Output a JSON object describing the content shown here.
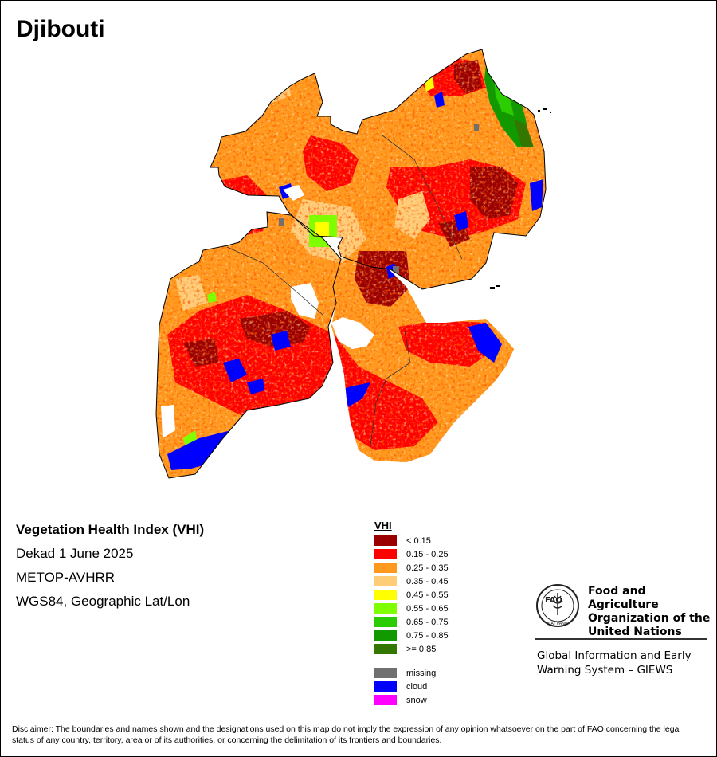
{
  "title": "Djibouti",
  "info": {
    "index_name": "Vegetation Health Index (VHI)",
    "period": "Dekad 1 June 2025",
    "sensor": "METOP-AVHRR",
    "projection": "WGS84, Geographic Lat/Lon"
  },
  "legend": {
    "title": "VHI",
    "classes": [
      {
        "label": "< 0.15",
        "color": "#9b0000"
      },
      {
        "label": "0.15 - 0.25",
        "color": "#ff0000"
      },
      {
        "label": "0.25 - 0.35",
        "color": "#ff9a1e"
      },
      {
        "label": "0.35 - 0.45",
        "color": "#ffcc77"
      },
      {
        "label": "0.45 - 0.55",
        "color": "#ffff00"
      },
      {
        "label": "0.55 - 0.65",
        "color": "#7fff00"
      },
      {
        "label": "0.65 - 0.75",
        "color": "#2bcc00"
      },
      {
        "label": "0.75 - 0.85",
        "color": "#129900"
      },
      {
        "label": ">= 0.85",
        "color": "#337700"
      }
    ],
    "other": [
      {
        "label": "missing",
        "color": "#707070"
      },
      {
        "label": "cloud",
        "color": "#0000ff"
      },
      {
        "label": "snow",
        "color": "#ff00ff"
      }
    ]
  },
  "organization": {
    "logo_text": "FAO",
    "logo_motto": "FIAT PANIS",
    "name_lines": [
      "Food and Agriculture",
      "Organization of the",
      "United Nations"
    ],
    "program_lines": [
      "Global Information and Early",
      "Warning System – GIEWS"
    ]
  },
  "disclaimer": "Disclaimer: The boundaries and names shown and the designations used on this map do not imply the expression of any opinion whatsoever on the part of FAO concerning the legal status of any country, territory, area or of its authorities, or concerning the delimitation of its frontiers and boundaries."
}
